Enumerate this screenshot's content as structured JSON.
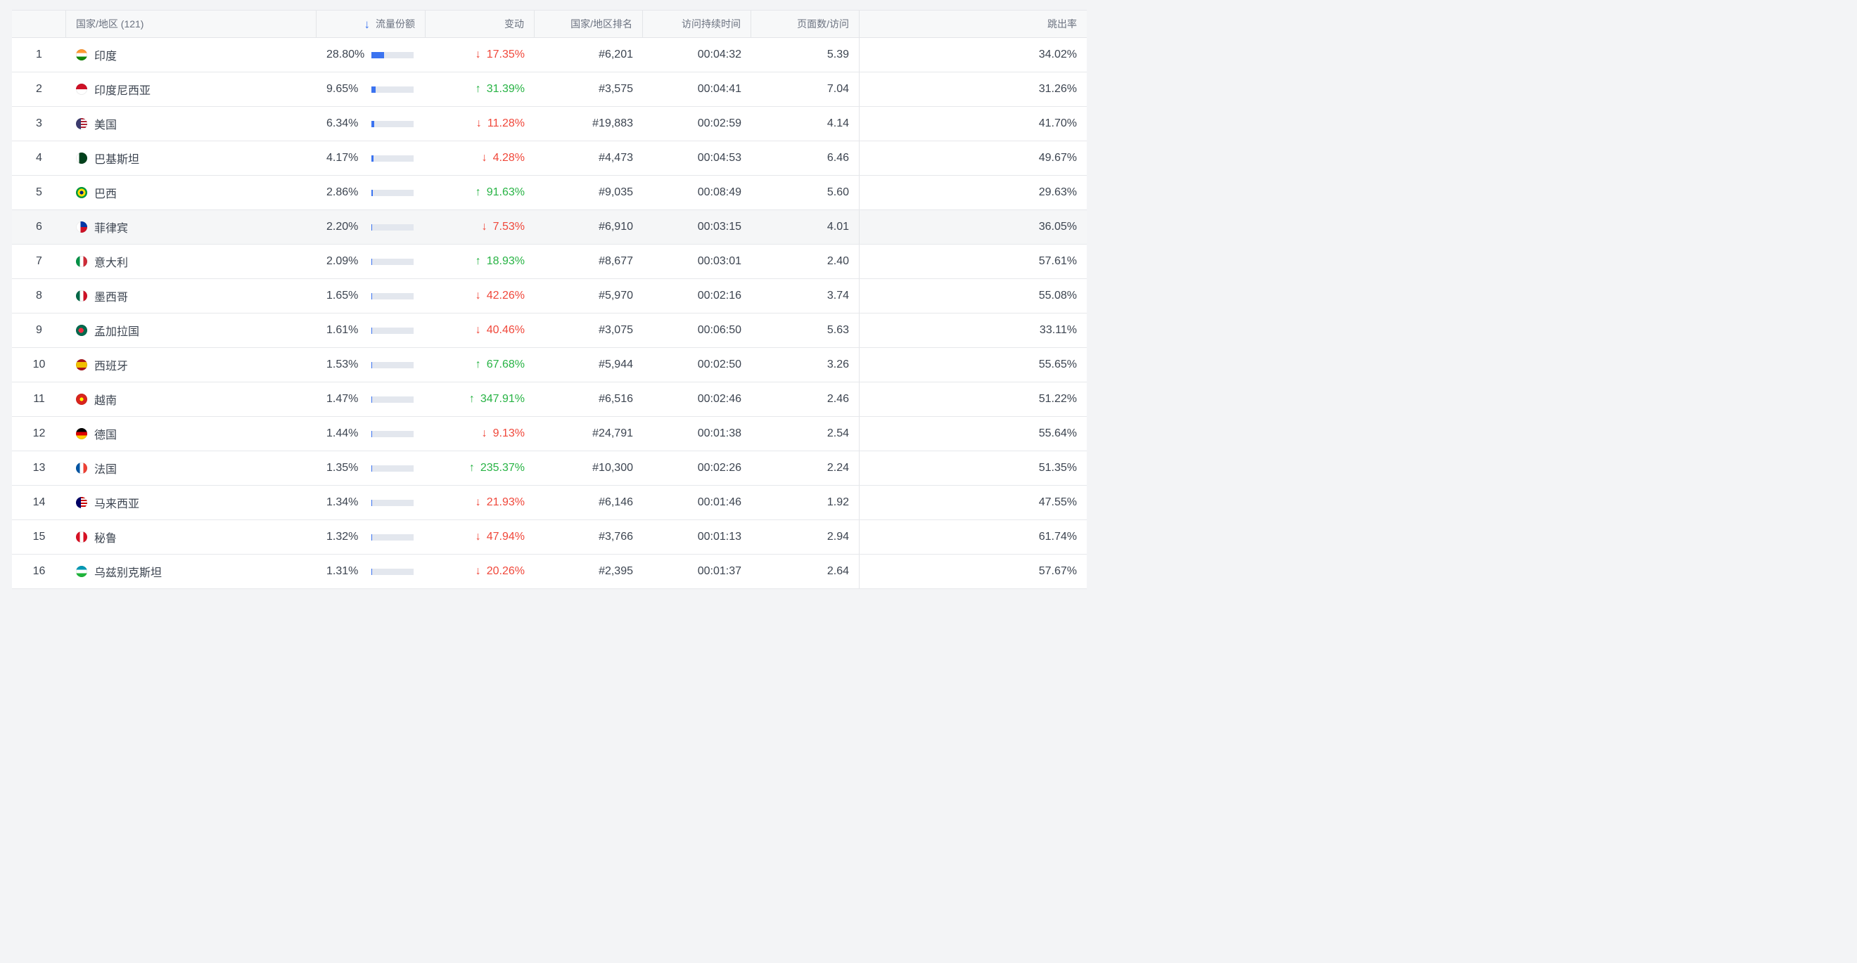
{
  "header": {
    "index": "",
    "country": "国家/地区 (121)",
    "share": "流量份额",
    "change": "变动",
    "rank": "国家/地区排名",
    "duration": "访问持续时间",
    "pages_per_visit": "页面数/访问",
    "bounce": "跳出率",
    "sort_icon": "arrow-down-icon"
  },
  "colors": {
    "accent": "#3b73f0",
    "down": "#f0473a",
    "up": "#27b344"
  },
  "rows": [
    {
      "idx": "1",
      "country": "印度",
      "flag": "india",
      "share": "28.80%",
      "share_frac": 0.288,
      "change": "17.35%",
      "dir": "down",
      "rank": "#6,201",
      "duration": "00:04:32",
      "ppv": "5.39",
      "bounce": "34.02%"
    },
    {
      "idx": "2",
      "country": "印度尼西亚",
      "flag": "indonesia",
      "share": "9.65%",
      "share_frac": 0.0965,
      "change": "31.39%",
      "dir": "up",
      "rank": "#3,575",
      "duration": "00:04:41",
      "ppv": "7.04",
      "bounce": "31.26%"
    },
    {
      "idx": "3",
      "country": "美国",
      "flag": "usa",
      "share": "6.34%",
      "share_frac": 0.0634,
      "change": "11.28%",
      "dir": "down",
      "rank": "#19,883",
      "duration": "00:02:59",
      "ppv": "4.14",
      "bounce": "41.70%"
    },
    {
      "idx": "4",
      "country": "巴基斯坦",
      "flag": "pakistan",
      "share": "4.17%",
      "share_frac": 0.0417,
      "change": "4.28%",
      "dir": "down",
      "rank": "#4,473",
      "duration": "00:04:53",
      "ppv": "6.46",
      "bounce": "49.67%"
    },
    {
      "idx": "5",
      "country": "巴西",
      "flag": "brazil",
      "share": "2.86%",
      "share_frac": 0.0286,
      "change": "91.63%",
      "dir": "up",
      "rank": "#9,035",
      "duration": "00:08:49",
      "ppv": "5.60",
      "bounce": "29.63%"
    },
    {
      "idx": "6",
      "country": "菲律宾",
      "flag": "philippines",
      "share": "2.20%",
      "share_frac": 0.022,
      "change": "7.53%",
      "dir": "down",
      "rank": "#6,910",
      "duration": "00:03:15",
      "ppv": "4.01",
      "bounce": "36.05%"
    },
    {
      "idx": "7",
      "country": "意大利",
      "flag": "italy",
      "share": "2.09%",
      "share_frac": 0.0209,
      "change": "18.93%",
      "dir": "up",
      "rank": "#8,677",
      "duration": "00:03:01",
      "ppv": "2.40",
      "bounce": "57.61%"
    },
    {
      "idx": "8",
      "country": "墨西哥",
      "flag": "mexico",
      "share": "1.65%",
      "share_frac": 0.0165,
      "change": "42.26%",
      "dir": "down",
      "rank": "#5,970",
      "duration": "00:02:16",
      "ppv": "3.74",
      "bounce": "55.08%"
    },
    {
      "idx": "9",
      "country": "孟加拉国",
      "flag": "bangladesh",
      "share": "1.61%",
      "share_frac": 0.0161,
      "change": "40.46%",
      "dir": "down",
      "rank": "#3,075",
      "duration": "00:06:50",
      "ppv": "5.63",
      "bounce": "33.11%"
    },
    {
      "idx": "10",
      "country": "西班牙",
      "flag": "spain",
      "share": "1.53%",
      "share_frac": 0.0153,
      "change": "67.68%",
      "dir": "up",
      "rank": "#5,944",
      "duration": "00:02:50",
      "ppv": "3.26",
      "bounce": "55.65%"
    },
    {
      "idx": "11",
      "country": "越南",
      "flag": "vietnam",
      "share": "1.47%",
      "share_frac": 0.0147,
      "change": "347.91%",
      "dir": "up",
      "rank": "#6,516",
      "duration": "00:02:46",
      "ppv": "2.46",
      "bounce": "51.22%"
    },
    {
      "idx": "12",
      "country": "德国",
      "flag": "germany",
      "share": "1.44%",
      "share_frac": 0.0144,
      "change": "9.13%",
      "dir": "down",
      "rank": "#24,791",
      "duration": "00:01:38",
      "ppv": "2.54",
      "bounce": "55.64%"
    },
    {
      "idx": "13",
      "country": "法国",
      "flag": "france",
      "share": "1.35%",
      "share_frac": 0.0135,
      "change": "235.37%",
      "dir": "up",
      "rank": "#10,300",
      "duration": "00:02:26",
      "ppv": "2.24",
      "bounce": "51.35%"
    },
    {
      "idx": "14",
      "country": "马来西亚",
      "flag": "malaysia",
      "share": "1.34%",
      "share_frac": 0.0134,
      "change": "21.93%",
      "dir": "down",
      "rank": "#6,146",
      "duration": "00:01:46",
      "ppv": "1.92",
      "bounce": "47.55%"
    },
    {
      "idx": "15",
      "country": "秘鲁",
      "flag": "peru",
      "share": "1.32%",
      "share_frac": 0.0132,
      "change": "47.94%",
      "dir": "down",
      "rank": "#3,766",
      "duration": "00:01:13",
      "ppv": "2.94",
      "bounce": "61.74%"
    },
    {
      "idx": "16",
      "country": "乌兹别克斯坦",
      "flag": "uzbekistan",
      "share": "1.31%",
      "share_frac": 0.0131,
      "change": "20.26%",
      "dir": "down",
      "rank": "#2,395",
      "duration": "00:01:37",
      "ppv": "2.64",
      "bounce": "57.67%"
    }
  ]
}
